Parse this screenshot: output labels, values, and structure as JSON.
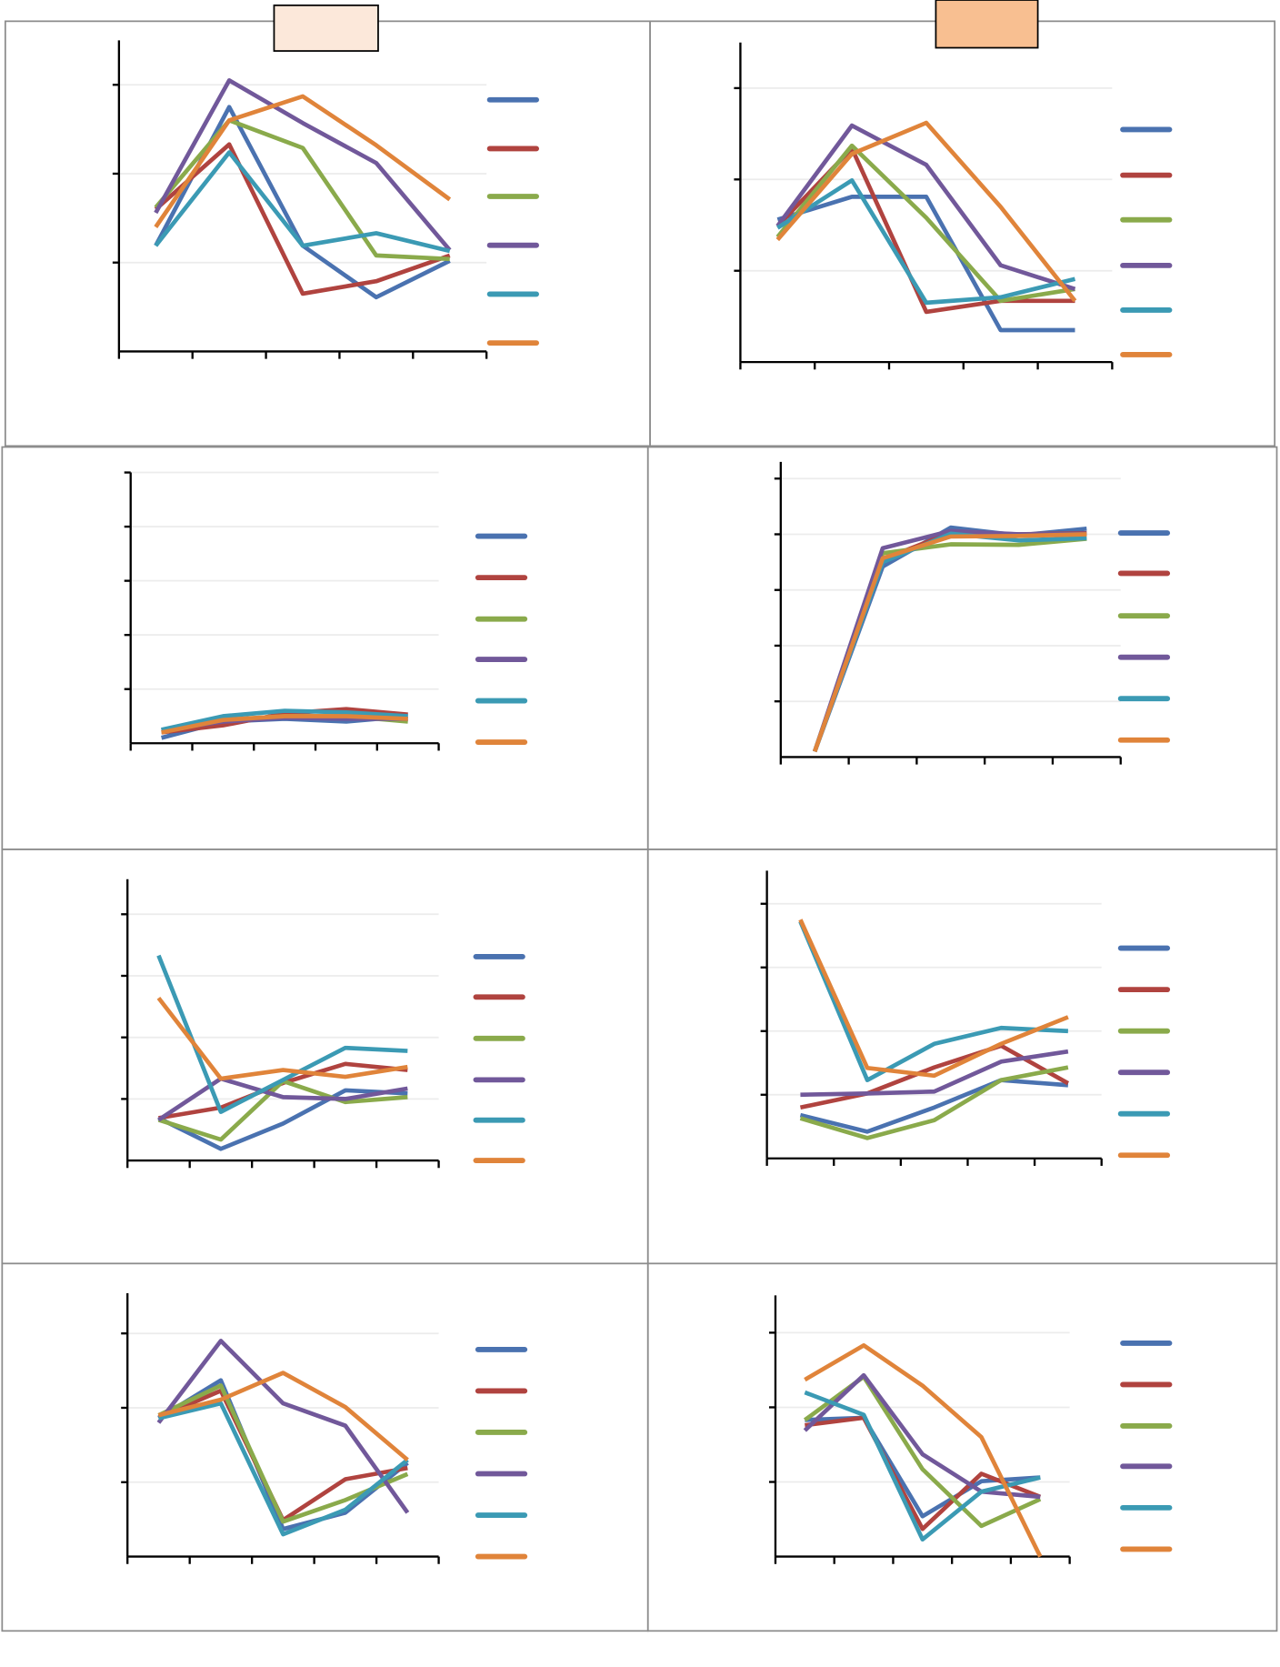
{
  "chart_data": [
    {
      "type": "line",
      "panel": "row1-left",
      "header_box_color": "#fce8da",
      "ylim": [
        0,
        3.5
      ],
      "y_gridlines": [
        1,
        2,
        3
      ],
      "x": [
        1,
        2,
        3,
        4,
        5
      ],
      "grid": true,
      "legend": "right",
      "series": [
        {
          "color": "#4a72b0",
          "values": [
            1.19,
            2.75,
            1.19,
            0.61,
            1.02
          ]
        },
        {
          "color": "#b0433f",
          "values": [
            1.6,
            2.33,
            0.65,
            0.79,
            1.08
          ]
        },
        {
          "color": "#8aaa4b",
          "values": [
            1.62,
            2.6,
            2.29,
            1.08,
            1.04
          ]
        },
        {
          "color": "#71589a",
          "values": [
            1.56,
            3.05,
            2.57,
            2.12,
            1.14
          ]
        },
        {
          "color": "#3b9ab4",
          "values": [
            1.19,
            2.24,
            1.19,
            1.33,
            1.13
          ]
        },
        {
          "color": "#e0843a",
          "values": [
            1.4,
            2.6,
            2.87,
            2.32,
            1.71
          ]
        }
      ]
    },
    {
      "type": "line",
      "panel": "row1-right",
      "header_box_color": "#f8bf91",
      "ylim": [
        0,
        3.5
      ],
      "y_gridlines": [
        1,
        2,
        3
      ],
      "x": [
        1,
        2,
        3,
        4,
        5
      ],
      "grid": true,
      "legend": "right",
      "series": [
        {
          "color": "#4a72b0",
          "values": [
            1.56,
            1.81,
            1.81,
            0.35,
            0.35
          ]
        },
        {
          "color": "#b0433f",
          "values": [
            1.49,
            2.34,
            0.55,
            0.67,
            0.67
          ]
        },
        {
          "color": "#8aaa4b",
          "values": [
            1.37,
            2.37,
            1.58,
            0.67,
            0.8
          ]
        },
        {
          "color": "#71589a",
          "values": [
            1.49,
            2.59,
            2.16,
            1.06,
            0.8
          ]
        },
        {
          "color": "#3b9ab4",
          "values": [
            1.47,
            1.99,
            0.65,
            0.71,
            0.91
          ]
        },
        {
          "color": "#e0843a",
          "values": [
            1.34,
            2.28,
            2.62,
            1.7,
            0.67
          ]
        }
      ]
    },
    {
      "type": "line",
      "panel": "row2-left",
      "ylim": [
        0,
        5
      ],
      "y_gridlines": [
        1,
        2,
        3,
        4,
        5
      ],
      "x": [
        1,
        2,
        3,
        4,
        5
      ],
      "grid": true,
      "legend": "right",
      "series": [
        {
          "color": "#4a72b0",
          "values": [
            0.1,
            0.4,
            0.45,
            0.4,
            0.5
          ]
        },
        {
          "color": "#b0433f",
          "values": [
            0.2,
            0.33,
            0.55,
            0.63,
            0.53
          ]
        },
        {
          "color": "#8aaa4b",
          "values": [
            0.24,
            0.43,
            0.5,
            0.5,
            0.4
          ]
        },
        {
          "color": "#71589a",
          "values": [
            0.24,
            0.4,
            0.47,
            0.45,
            0.45
          ]
        },
        {
          "color": "#3b9ab4",
          "values": [
            0.25,
            0.5,
            0.6,
            0.57,
            0.5
          ]
        },
        {
          "color": "#e0843a",
          "values": [
            0.2,
            0.43,
            0.5,
            0.5,
            0.45
          ]
        }
      ]
    },
    {
      "type": "line",
      "panel": "row2-right",
      "ylim": [
        0,
        5.3
      ],
      "y_gridlines": [
        1,
        2,
        3,
        4,
        5
      ],
      "x": [
        1,
        2,
        3,
        4,
        5
      ],
      "grid": true,
      "legend": "right",
      "series": [
        {
          "color": "#4a72b0",
          "values": [
            0.1,
            3.42,
            4.12,
            3.98,
            4.1
          ]
        },
        {
          "color": "#b0433f",
          "values": [
            0.1,
            3.55,
            4.03,
            4.0,
            4.02
          ]
        },
        {
          "color": "#8aaa4b",
          "values": [
            0.1,
            3.66,
            3.82,
            3.81,
            3.92
          ]
        },
        {
          "color": "#71589a",
          "values": [
            0.1,
            3.75,
            4.06,
            4.0,
            4.01
          ]
        },
        {
          "color": "#3b9ab4",
          "values": [
            0.1,
            3.5,
            4.01,
            3.89,
            3.93
          ]
        },
        {
          "color": "#e0843a",
          "values": [
            0.1,
            3.57,
            3.96,
            3.97,
            4.0
          ]
        }
      ]
    },
    {
      "type": "line",
      "panel": "row3-left",
      "ylim": [
        0,
        4.57
      ],
      "y_gridlines": [
        1,
        2,
        3,
        4
      ],
      "x": [
        1,
        2,
        3,
        4,
        5
      ],
      "grid": true,
      "legend": "right",
      "series": [
        {
          "color": "#4a72b0",
          "values": [
            0.69,
            0.19,
            0.6,
            1.14,
            1.09
          ]
        },
        {
          "color": "#b0433f",
          "values": [
            0.69,
            0.86,
            1.26,
            1.57,
            1.47
          ]
        },
        {
          "color": "#8aaa4b",
          "values": [
            0.66,
            0.34,
            1.29,
            0.95,
            1.03
          ]
        },
        {
          "color": "#71589a",
          "values": [
            0.66,
            1.33,
            1.03,
            1.0,
            1.17
          ]
        },
        {
          "color": "#3b9ab4",
          "values": [
            3.33,
            0.79,
            1.31,
            1.83,
            1.78
          ]
        },
        {
          "color": "#e0843a",
          "values": [
            2.64,
            1.33,
            1.47,
            1.36,
            1.52
          ]
        }
      ]
    },
    {
      "type": "line",
      "panel": "row3-right",
      "ylim": [
        0,
        4.52
      ],
      "y_gridlines": [
        1,
        2,
        3,
        4
      ],
      "x": [
        1,
        2,
        3,
        4,
        5
      ],
      "grid": true,
      "legend": "right",
      "series": [
        {
          "color": "#4a72b0",
          "values": [
            0.68,
            0.42,
            0.8,
            1.23,
            1.15
          ]
        },
        {
          "color": "#b0433f",
          "values": [
            0.8,
            1.02,
            1.43,
            1.77,
            1.18
          ]
        },
        {
          "color": "#8aaa4b",
          "values": [
            0.63,
            0.32,
            0.6,
            1.23,
            1.43
          ]
        },
        {
          "color": "#71589a",
          "values": [
            1.0,
            1.02,
            1.05,
            1.52,
            1.68
          ]
        },
        {
          "color": "#3b9ab4",
          "values": [
            3.72,
            1.23,
            1.8,
            2.05,
            2.0
          ]
        },
        {
          "color": "#e0843a",
          "values": [
            3.75,
            1.42,
            1.3,
            1.8,
            2.22
          ]
        }
      ]
    },
    {
      "type": "line",
      "panel": "row4-left",
      "ylim": [
        0,
        3.54
      ],
      "y_gridlines": [
        1,
        2,
        3
      ],
      "x": [
        1,
        2,
        3,
        4,
        5
      ],
      "grid": true,
      "legend": "right",
      "series": [
        {
          "color": "#4a72b0",
          "values": [
            1.86,
            2.37,
            0.37,
            0.59,
            1.26
          ]
        },
        {
          "color": "#b0433f",
          "values": [
            1.87,
            2.23,
            0.49,
            1.04,
            1.19
          ]
        },
        {
          "color": "#8aaa4b",
          "values": [
            1.9,
            2.3,
            0.47,
            0.76,
            1.11
          ]
        },
        {
          "color": "#71589a",
          "values": [
            1.8,
            2.9,
            2.06,
            1.76,
            0.59
          ]
        },
        {
          "color": "#3b9ab4",
          "values": [
            1.86,
            2.06,
            0.3,
            0.63,
            1.3
          ]
        },
        {
          "color": "#e0843a",
          "values": [
            1.9,
            2.11,
            2.47,
            2.01,
            1.3
          ]
        }
      ]
    },
    {
      "type": "line",
      "panel": "row4-right",
      "ylim": [
        0,
        3.5
      ],
      "y_gridlines": [
        1,
        2,
        3
      ],
      "x": [
        1,
        2,
        3,
        4,
        5
      ],
      "grid": true,
      "legend": "right",
      "series": [
        {
          "color": "#4a72b0",
          "values": [
            1.83,
            1.86,
            0.54,
            1.01,
            1.06
          ]
        },
        {
          "color": "#b0433f",
          "values": [
            1.76,
            1.86,
            0.37,
            1.11,
            0.8
          ]
        },
        {
          "color": "#8aaa4b",
          "values": [
            1.83,
            2.41,
            1.17,
            0.41,
            0.77
          ]
        },
        {
          "color": "#71589a",
          "values": [
            1.69,
            2.43,
            1.37,
            0.87,
            0.8
          ]
        },
        {
          "color": "#3b9ab4",
          "values": [
            2.2,
            1.9,
            0.23,
            0.87,
            1.06
          ]
        },
        {
          "color": "#e0843a",
          "values": [
            2.37,
            2.83,
            2.29,
            1.6,
            0
          ]
        }
      ]
    }
  ]
}
